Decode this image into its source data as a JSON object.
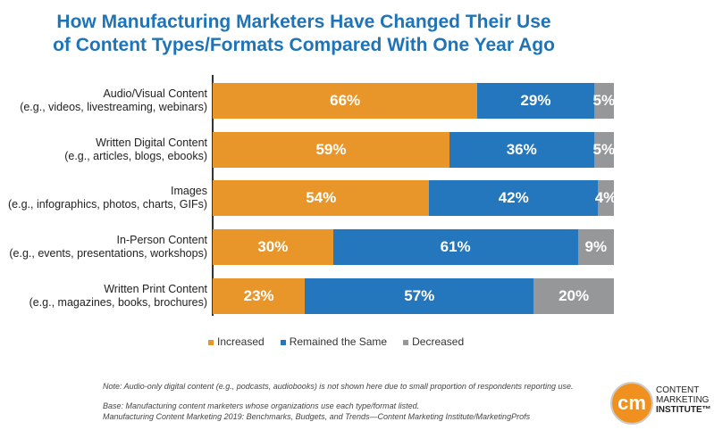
{
  "chart_data": {
    "type": "bar",
    "stacked": true,
    "orientation": "horizontal",
    "title": "How Manufacturing Marketers Have Changed Their Use of Content Types/Formats Compared With One Year Ago",
    "title_lines": [
      "How Manufacturing Marketers Have Changed Their Use",
      "of Content Types/Formats Compared With One Year Ago"
    ],
    "categories": [
      {
        "name": "Audio/Visual Content",
        "sub": "(e.g., videos, livestreaming, webinars)"
      },
      {
        "name": "Written Digital Content",
        "sub": "(e.g., articles, blogs, ebooks)"
      },
      {
        "name": "Images",
        "sub": "(e.g., infographics, photos, charts, GIFs)"
      },
      {
        "name": "In-Person Content",
        "sub": "(e.g., events, presentations, workshops)"
      },
      {
        "name": "Written Print Content",
        "sub": "(e.g., magazines, books, brochures)"
      }
    ],
    "series": [
      {
        "name": "Increased",
        "color": "#e8962a",
        "values": [
          66,
          59,
          54,
          30,
          23
        ],
        "labels": [
          "66%",
          "59%",
          "54%",
          "30%",
          "23%"
        ]
      },
      {
        "name": "Remained the Same",
        "color": "#2476bd",
        "values": [
          29,
          36,
          42,
          61,
          57
        ],
        "labels": [
          "29%",
          "36%",
          "42%",
          "61%",
          "57%"
        ]
      },
      {
        "name": "Decreased",
        "color": "#959799",
        "values": [
          5,
          5,
          4,
          9,
          20
        ],
        "labels": [
          "5%",
          "5%",
          "4%",
          "9%",
          "20%"
        ]
      }
    ],
    "xlim": [
      0,
      100
    ],
    "legend": "bottom"
  },
  "notes": {
    "note": "Note: Audio-only digital content (e.g., podcasts, audiobooks) is not shown here due to small proportion of respondents reporting use.",
    "base": "Base: Manufacturing content marketers whose organizations use each type/format listed.",
    "source": "Manufacturing Content Marketing 2019: Benchmarks, Budgets, and Trends—Content Marketing Institute/MarketingProfs"
  },
  "logo": {
    "mark": "cm",
    "line1": "CONTENT",
    "line2": "MARKETING",
    "line3": "INSTITUTE™"
  }
}
